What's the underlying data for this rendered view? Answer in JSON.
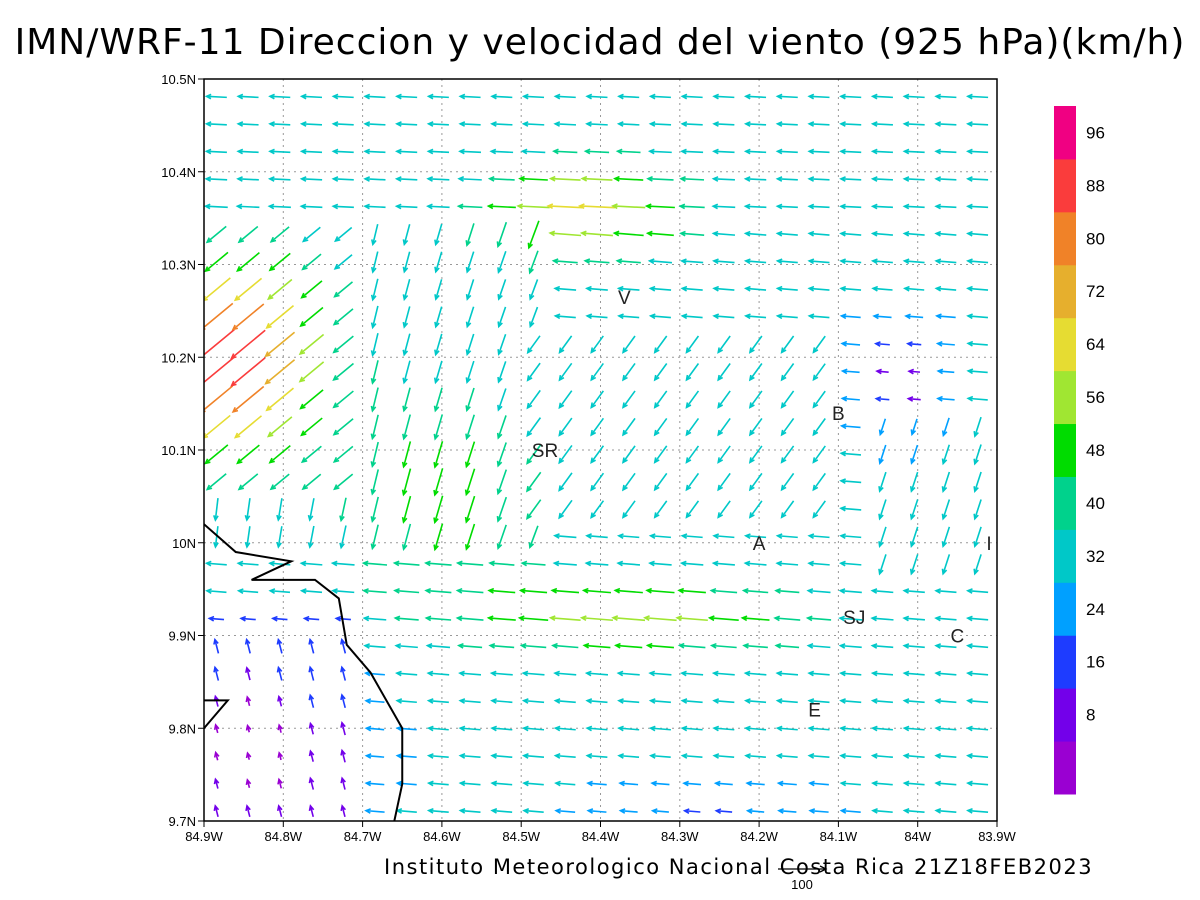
{
  "title": "IMN/WRF-11 Direccion y velocidad del viento (925 hPa)(km/h)",
  "footer": "Instituto Meteorologico Nacional Costa Rica 21Z18FEB2023",
  "reference_vector_label": "100",
  "map": {
    "lon_range": [
      -84.9,
      -83.9
    ],
    "lat_range": [
      9.7,
      10.5
    ],
    "x_ticks": [
      {
        "value": -84.9,
        "label": "84.9W"
      },
      {
        "value": -84.8,
        "label": "84.8W"
      },
      {
        "value": -84.7,
        "label": "84.7W"
      },
      {
        "value": -84.6,
        "label": "84.6W"
      },
      {
        "value": -84.5,
        "label": "84.5W"
      },
      {
        "value": -84.4,
        "label": "84.4W"
      },
      {
        "value": -84.3,
        "label": "84.3W"
      },
      {
        "value": -84.2,
        "label": "84.2W"
      },
      {
        "value": -84.1,
        "label": "84.1W"
      },
      {
        "value": -84.0,
        "label": "84W"
      },
      {
        "value": -83.9,
        "label": "83.9W"
      }
    ],
    "y_ticks": [
      {
        "value": 9.7,
        "label": "9.7N"
      },
      {
        "value": 9.8,
        "label": "9.8N"
      },
      {
        "value": 9.9,
        "label": "9.9N"
      },
      {
        "value": 10.0,
        "label": "10N"
      },
      {
        "value": 10.1,
        "label": "10.1N"
      },
      {
        "value": 10.2,
        "label": "10.2N"
      },
      {
        "value": 10.3,
        "label": "10.3N"
      },
      {
        "value": 10.4,
        "label": "10.4N"
      },
      {
        "value": 10.5,
        "label": "10.5N"
      }
    ],
    "stations": [
      {
        "label": "V",
        "lon": -84.37,
        "lat": 10.265
      },
      {
        "label": "B",
        "lon": -84.1,
        "lat": 10.14
      },
      {
        "label": "SR",
        "lon": -84.47,
        "lat": 10.1
      },
      {
        "label": "A",
        "lon": -84.2,
        "lat": 10.0
      },
      {
        "label": "I",
        "lon": -83.91,
        "lat": 10.0
      },
      {
        "label": "SJ",
        "lon": -84.08,
        "lat": 9.92
      },
      {
        "label": "C",
        "lon": -83.95,
        "lat": 9.9
      },
      {
        "label": "E",
        "lon": -84.13,
        "lat": 9.82
      }
    ],
    "coastline": [
      [
        -84.9,
        10.02
      ],
      [
        -84.86,
        9.99
      ],
      [
        -84.79,
        9.98
      ],
      [
        -84.84,
        9.96
      ],
      [
        -84.76,
        9.96
      ],
      [
        -84.73,
        9.94
      ],
      [
        -84.72,
        9.89
      ],
      [
        -84.69,
        9.86
      ],
      [
        -84.65,
        9.8
      ],
      [
        -84.65,
        9.74
      ],
      [
        -84.66,
        9.7
      ]
    ],
    "coastline_small": [
      [
        -84.9,
        9.83
      ],
      [
        -84.87,
        9.83
      ],
      [
        -84.9,
        9.8
      ]
    ]
  },
  "colorbar": {
    "labels": [
      "96",
      "88",
      "80",
      "72",
      "64",
      "56",
      "48",
      "40",
      "32",
      "24",
      "16",
      "8"
    ],
    "colors": [
      "#9a00d2",
      "#7300ea",
      "#1e3cff",
      "#00a0ff",
      "#00c8c8",
      "#00d28c",
      "#00dc00",
      "#a0e632",
      "#e6dc32",
      "#e6af2d",
      "#f08228",
      "#fa3c3c",
      "#f00082"
    ]
  },
  "chart_data": {
    "type": "vector-field",
    "title": "IMN/WRF-11 Direccion y velocidad del viento (925 hPa)(km/h)",
    "variable": "wind direction and speed at 925 hPa",
    "units": "km/h",
    "dominant_direction": "from the east / north-east (arrows pointing west / south-west)",
    "speed_regions": [
      {
        "area": "north-west (84.9W-84.7W, 10.1N-10.3N)",
        "speed_range_kmh": [
          72,
          104
        ]
      },
      {
        "area": "central north (84.6W-84.3W, 10.3N-10.4N)",
        "speed_range_kmh": [
          64,
          80
        ]
      },
      {
        "area": "central band near 9.9N-10.0N",
        "speed_range_kmh": [
          48,
          72
        ]
      },
      {
        "area": "south-west over the sea (84.9W-84.7W, 9.7N-9.9N)",
        "speed_range_kmh": [
          0,
          16
        ]
      },
      {
        "area": "east around B and SJ",
        "speed_range_kmh": [
          8,
          40
        ]
      }
    ],
    "colorbar_levels_kmh": [
      8,
      16,
      24,
      32,
      40,
      48,
      56,
      64,
      72,
      80,
      88,
      96
    ],
    "reference_vector_kmh": 100
  }
}
